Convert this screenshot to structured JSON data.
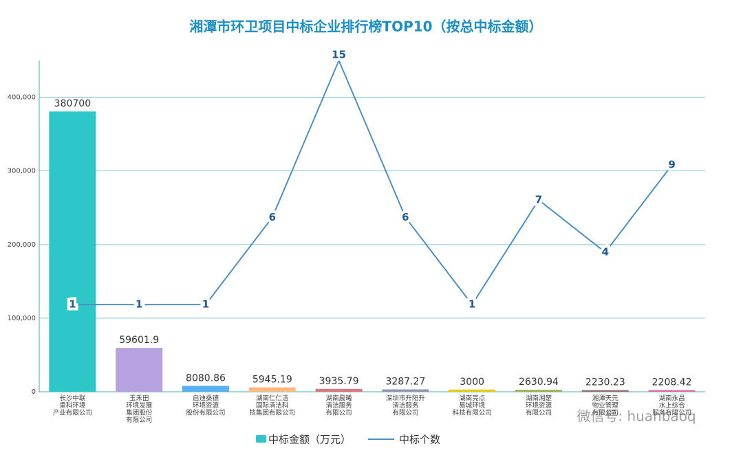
{
  "chart_data": {
    "type": "bar-line",
    "title": "湘潭市环卫项目中标企业排行榜TOP10（按总中标金额）",
    "categories": [
      [
        "长沙中联",
        "重科环境",
        "产业有限公司"
      ],
      [
        "玉禾田",
        "环境发展",
        "集团股份",
        "有限公司"
      ],
      [
        "启迪桑德",
        "环境资源",
        "股份有限公司"
      ],
      [
        "湖南仁仁洁",
        "国际清洁科",
        "技集团有限公司"
      ],
      [
        "湖南晨曦",
        "清洁服务",
        "有限公司"
      ],
      [
        "深圳市升阳升",
        "清洁服务",
        "有限公司"
      ],
      [
        "湖南亮点",
        "易城环境",
        "科技有限公司"
      ],
      [
        "湖南湘楚",
        "环境资源",
        "有限公司"
      ],
      [
        "湘潭天元",
        "物业管理",
        "有限公司"
      ],
      [
        "湖南永昌",
        "水上综合",
        "服务有限公司"
      ]
    ],
    "series": [
      {
        "name": "中标金额（万元）",
        "type": "bar",
        "color": "#2ec7c9",
        "colors": [
          "#2ec7c9",
          "#b6a2de",
          "#5ab1ef",
          "#ffb980",
          "#d87a80",
          "#8d98b3",
          "#e5cf0d",
          "#97b552",
          "#95706d",
          "#dc69aa"
        ],
        "values": [
          380700,
          59601.9,
          8080.86,
          5945.19,
          3935.79,
          3287.27,
          3000,
          2630.94,
          2230.23,
          2208.42
        ]
      },
      {
        "name": "中标个数",
        "type": "line",
        "axis": "y2",
        "color": "#4a90c8",
        "values": [
          1,
          1,
          1,
          6,
          15,
          6,
          1,
          7,
          4,
          9
        ]
      }
    ],
    "ylim": [
      0,
      450000
    ],
    "yticks": [
      0,
      {
        "value": 100000,
        "label": "100,000"
      },
      {
        "value": 200000,
        "label": "200,000"
      },
      {
        "value": 300000,
        "label": "300,000"
      },
      {
        "value": 400000,
        "label": "400,000"
      }
    ],
    "y2lim": [
      -4,
      15
    ],
    "grid": true
  },
  "watermark": "微信号: huanbaoq"
}
